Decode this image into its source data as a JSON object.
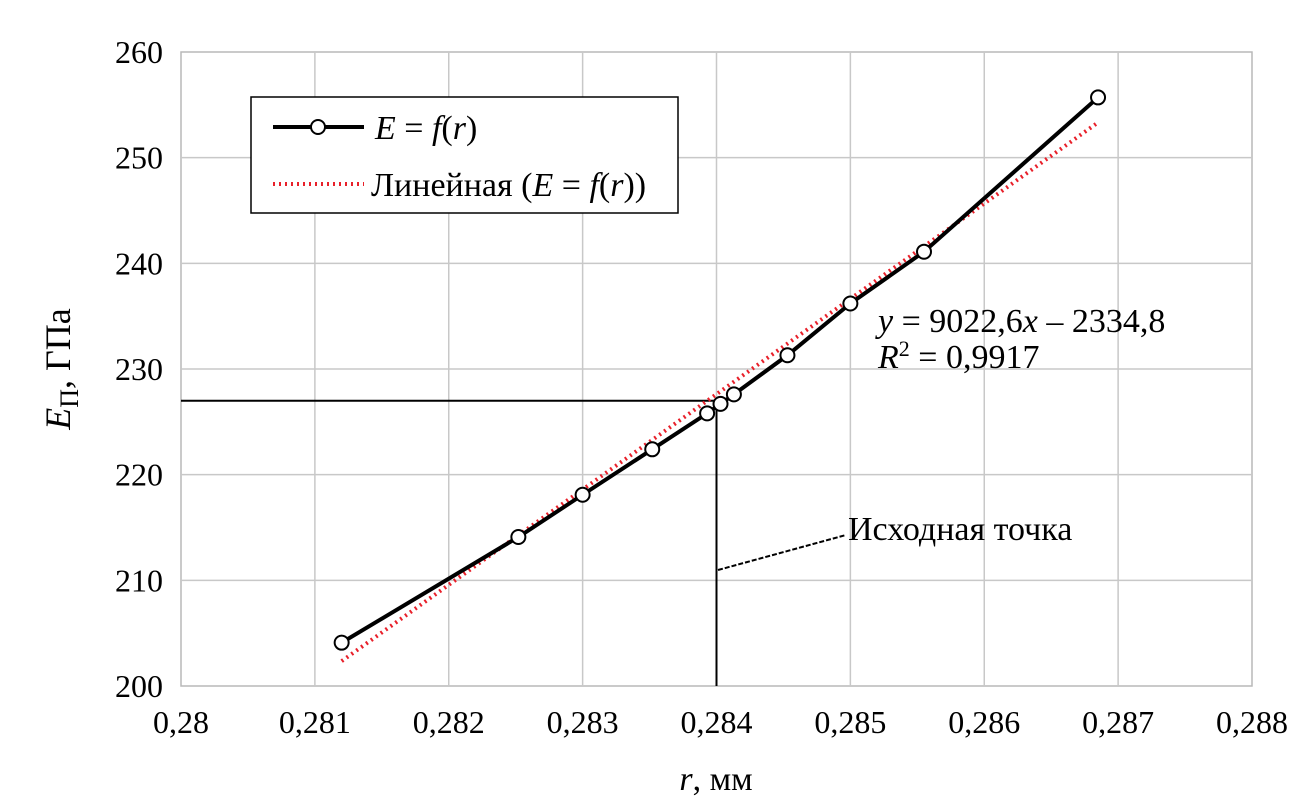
{
  "chart_data": {
    "type": "line",
    "xlabel": {
      "var": "r",
      "unit": ", мм"
    },
    "ylabel": {
      "var": "E",
      "sub": "П",
      "unit": ", ГПа"
    },
    "xlim": [
      0.28,
      0.288
    ],
    "ylim": [
      200,
      260
    ],
    "x_ticks": [
      0.28,
      0.281,
      0.282,
      0.283,
      0.284,
      0.285,
      0.286,
      0.287,
      0.288
    ],
    "x_tick_labels": [
      "0,28",
      "0,281",
      "0,282",
      "0,283",
      "0,284",
      "0,285",
      "0,286",
      "0,287",
      "0,288"
    ],
    "y_ticks": [
      200,
      210,
      220,
      230,
      240,
      250,
      260
    ],
    "y_tick_labels": [
      "200",
      "210",
      "220",
      "230",
      "240",
      "250",
      "260"
    ],
    "grid": true,
    "legend_position": "top-left",
    "series": [
      {
        "name": "E = f(r)",
        "style": "solid-line-open-circle-markers",
        "color": "#000000",
        "x": [
          0.2812,
          0.28252,
          0.283,
          0.28352,
          0.28393,
          0.28403,
          0.28413,
          0.28453,
          0.285,
          0.28555,
          0.28685
        ],
        "y": [
          204.1,
          214.1,
          218.1,
          222.4,
          225.8,
          226.7,
          227.6,
          231.3,
          236.2,
          241.1,
          255.7
        ]
      }
    ],
    "trendline": {
      "name": "Линейная (E = f(r))",
      "type": "linear",
      "color": "#e8202a",
      "style": "dotted",
      "slope": 9022.6,
      "intercept": -2334.8,
      "x_range": [
        0.2812,
        0.28685
      ]
    },
    "annotations": {
      "equation": "y = 9022,6x – 2334,8",
      "r_squared": "R² = 0,9917",
      "source_point_label": "Исходная точка",
      "source_point": {
        "x": 0.284,
        "y": 227
      }
    }
  }
}
